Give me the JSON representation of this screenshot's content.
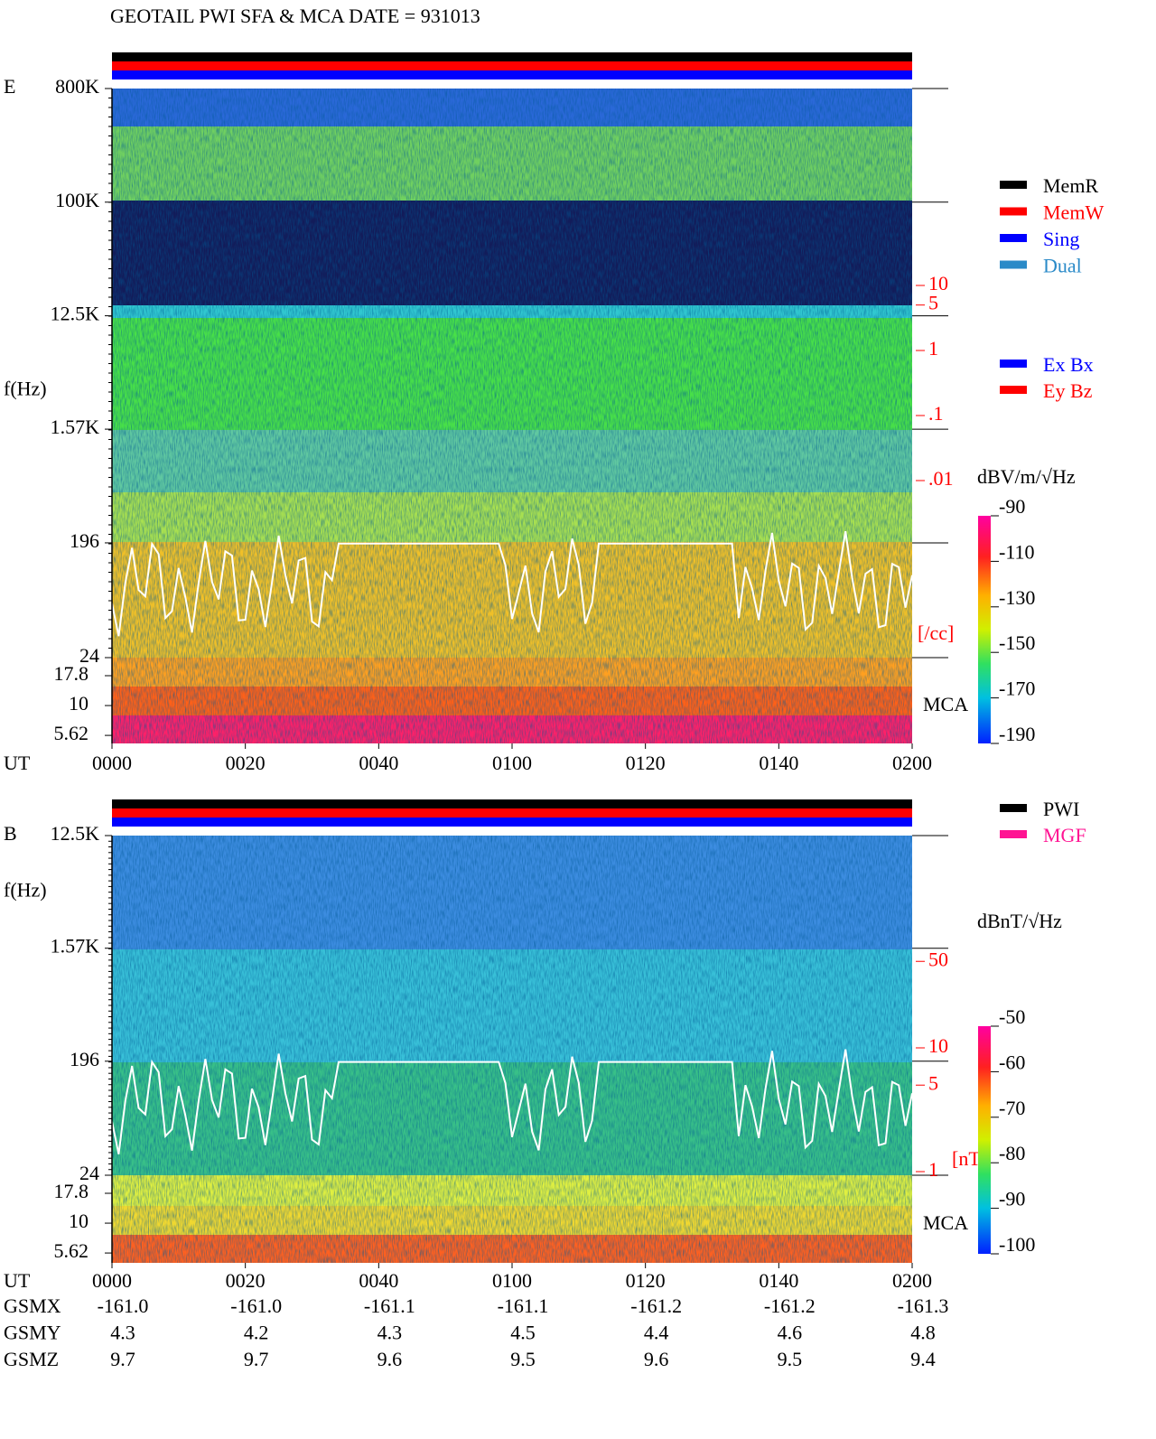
{
  "title": "GEOTAIL  PWI SFA & MCA   DATE = 931013",
  "chart_data": [
    {
      "type": "spectrogram",
      "panel_label": "E",
      "ylabel": "f(Hz)",
      "xlabel": "UT",
      "log_y": true,
      "ylim": [
        24,
        800000
      ],
      "yticks": [
        {
          "value": 800000,
          "label": "800K"
        },
        {
          "value": 100000,
          "label": "100K"
        },
        {
          "value": 12500,
          "label": "12.5K"
        },
        {
          "value": 1570,
          "label": "1.57K"
        },
        196,
        24
      ],
      "mca_label": "MCA",
      "mca_ticks": [
        17.8,
        10,
        5.62
      ],
      "xlim": [
        0,
        120
      ],
      "xticks": [
        {
          "value": 0,
          "label": "0000"
        },
        {
          "value": 20,
          "label": "0020"
        },
        {
          "value": 40,
          "label": "0040"
        },
        {
          "value": 60,
          "label": "0100"
        },
        {
          "value": 80,
          "label": "0120"
        },
        {
          "value": 100,
          "label": "0140"
        },
        {
          "value": 120,
          "label": "0200"
        }
      ],
      "status_legend": [
        {
          "name": "MemR",
          "color": "#000000"
        },
        {
          "name": "MemW",
          "color": "#ff0000"
        },
        {
          "name": "Sing",
          "color": "#0000ff"
        },
        {
          "name": "Dual",
          "color": "#2a8ac8"
        }
      ],
      "component_legend": [
        {
          "name": "Ex Bx",
          "color": "#0000ff"
        },
        {
          "name": "Ey Bz",
          "color": "#ff0000"
        }
      ],
      "colorbar": {
        "label": "dBV/m/√Hz",
        "lim": [
          -190,
          -90
        ],
        "ticks": [
          -90,
          -110,
          -130,
          -150,
          -170,
          -190
        ]
      },
      "density_axis": {
        "label": "[/cc]",
        "ticks": [
          10,
          5,
          1,
          {
            "value": 0.1,
            "label": ".1"
          },
          {
            "value": 0.01,
            "label": ".01"
          }
        ]
      }
    },
    {
      "type": "spectrogram",
      "panel_label": "B",
      "ylabel": "f(Hz)",
      "xlabel": "UT",
      "log_y": true,
      "ylim": [
        24,
        12500
      ],
      "yticks": [
        {
          "value": 12500,
          "label": "12.5K"
        },
        {
          "value": 1570,
          "label": "1.57K"
        },
        196,
        24
      ],
      "mca_label": "MCA",
      "mca_ticks": [
        17.8,
        10,
        5.62
      ],
      "xlim": [
        0,
        120
      ],
      "xticks": [
        {
          "value": 0,
          "label": "0000"
        },
        {
          "value": 20,
          "label": "0020"
        },
        {
          "value": 40,
          "label": "0040"
        },
        {
          "value": 60,
          "label": "0100"
        },
        {
          "value": 80,
          "label": "0120"
        },
        {
          "value": 100,
          "label": "0140"
        },
        {
          "value": 120,
          "label": "0200"
        }
      ],
      "status_legend": [
        {
          "name": "PWI",
          "color": "#000000"
        },
        {
          "name": "MGF",
          "color": "#ff1493"
        }
      ],
      "colorbar": {
        "label": "dBnT/√Hz",
        "lim": [
          -100,
          -50
        ],
        "ticks": [
          -50,
          -60,
          -70,
          -80,
          -90,
          -100
        ]
      },
      "density_axis": {
        "label": "[nT]",
        "ticks": [
          50,
          10,
          5,
          1
        ]
      }
    }
  ],
  "orbit": {
    "rows": [
      {
        "name": "GSMX",
        "values": [
          "-161.0",
          "-161.0",
          "-161.1",
          "-161.1",
          "-161.2",
          "-161.2",
          "-161.3"
        ]
      },
      {
        "name": "GSMY",
        "values": [
          "4.3",
          "4.2",
          "4.3",
          "4.5",
          "4.4",
          "4.6",
          "4.8"
        ]
      },
      {
        "name": "GSMZ",
        "values": [
          "9.7",
          "9.7",
          "9.6",
          "9.5",
          "9.6",
          "9.5",
          "9.4"
        ]
      }
    ]
  }
}
